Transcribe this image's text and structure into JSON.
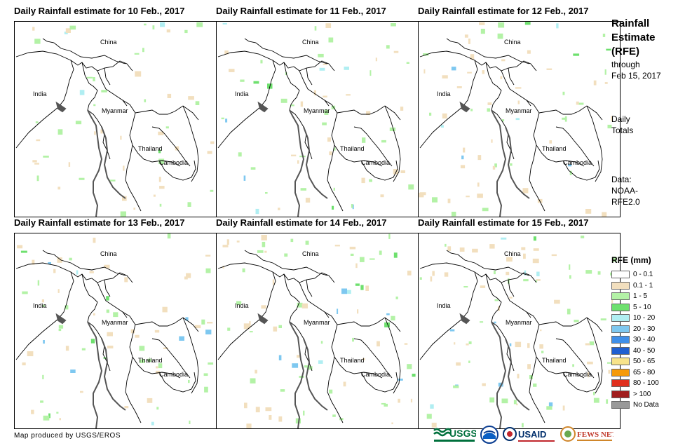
{
  "panels": [
    {
      "title": "Daily Rainfall estimate for 10 Feb., 2017"
    },
    {
      "title": "Daily Rainfall estimate for 11 Feb., 2017"
    },
    {
      "title": "Daily Rainfall estimate for 12 Feb., 2017"
    },
    {
      "title": "Daily Rainfall estimate for 13 Feb., 2017"
    },
    {
      "title": "Daily Rainfall estimate for 14 Feb., 2017"
    },
    {
      "title": "Daily Rainfall estimate for 15 Feb., 2017"
    }
  ],
  "map_labels": {
    "china": "China",
    "india": "India",
    "myanmar": "Myanmar",
    "thailand": "Thailand",
    "cambodia": "Cambodia"
  },
  "sidebar": {
    "title_lines": [
      "Rainfall",
      "Estimate",
      "(RFE)"
    ],
    "through_lines": [
      "through",
      "Feb 15, 2017"
    ],
    "totals_lines": [
      "Daily",
      "Totals"
    ],
    "data_lines": [
      "Data:",
      "NOAA-",
      "RFE2.0"
    ]
  },
  "legend": {
    "title": "RFE (mm)",
    "items": [
      {
        "label": "0 - 0.1",
        "color": "#ffffff"
      },
      {
        "label": "0.1 - 1",
        "color": "#f2dfbe"
      },
      {
        "label": "1 - 5",
        "color": "#b3f2a6"
      },
      {
        "label": "5 - 10",
        "color": "#6ee06e"
      },
      {
        "label": "10 - 20",
        "color": "#b0eef2"
      },
      {
        "label": "20 - 30",
        "color": "#7ec8f0"
      },
      {
        "label": "30 - 40",
        "color": "#3f8fe8"
      },
      {
        "label": "40 - 50",
        "color": "#1f5fd0"
      },
      {
        "label": "50 - 65",
        "color": "#f7e38a"
      },
      {
        "label": "65 - 80",
        "color": "#f59a0a"
      },
      {
        "label": "80 - 100",
        "color": "#e0301e"
      },
      {
        "label": "> 100",
        "color": "#a01c1c"
      },
      {
        "label": "No Data",
        "color": "#999999"
      }
    ]
  },
  "credit": "Map produced by USGS/EROS",
  "logos": {
    "usgs": "USGS",
    "usaid": "USAID",
    "fewsnet": "FEWS NET"
  }
}
